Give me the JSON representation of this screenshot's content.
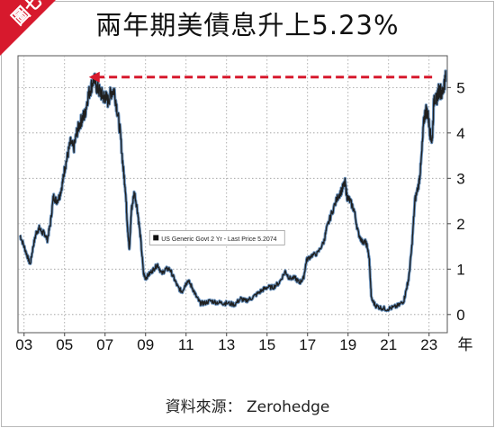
{
  "badge": {
    "label": "圖七",
    "color": "#d7192d"
  },
  "title": "兩年期美債息升上5.23%",
  "source": "資料來源：  Zerohedge",
  "chart_data": {
    "type": "line",
    "title": "兩年期美債息升上5.23%",
    "xlabel": "年",
    "ylabel": "",
    "x_tick_labels": [
      "03",
      "05",
      "07",
      "09",
      "11",
      "13",
      "15",
      "17",
      "19",
      "21",
      "23"
    ],
    "y_tick_labels": [
      "0",
      "1",
      "2",
      "3",
      "4",
      "5"
    ],
    "xlim": [
      2002.7,
      2023.9
    ],
    "ylim": [
      -0.4,
      5.7
    ],
    "grid": true,
    "grid_style": "dotted",
    "legend_text": "US Generic Govt 2 Yr - Last Price 5.2074",
    "legend_position": "center",
    "line_color": "#1f1f1f",
    "line_highlight_color": "#4f7fb3",
    "annotation": {
      "type": "dashed-arrow",
      "from_x": 2023.15,
      "to_x": 2006.2,
      "y": 5.23,
      "color": "#d7192d"
    },
    "series": [
      {
        "values": [
          [
            2002.8,
            1.75
          ],
          [
            2003.0,
            1.5
          ],
          [
            2003.15,
            1.3
          ],
          [
            2003.3,
            1.1
          ],
          [
            2003.45,
            1.5
          ],
          [
            2003.6,
            1.8
          ],
          [
            2003.75,
            1.9
          ],
          [
            2003.9,
            1.8
          ],
          [
            2004.0,
            1.8
          ],
          [
            2004.15,
            1.65
          ],
          [
            2004.3,
            2.0
          ],
          [
            2004.45,
            2.6
          ],
          [
            2004.6,
            2.5
          ],
          [
            2004.75,
            2.6
          ],
          [
            2004.9,
            2.9
          ],
          [
            2005.0,
            3.2
          ],
          [
            2005.15,
            3.5
          ],
          [
            2005.3,
            3.8
          ],
          [
            2005.45,
            3.65
          ],
          [
            2005.6,
            4.0
          ],
          [
            2005.75,
            4.2
          ],
          [
            2005.9,
            4.35
          ],
          [
            2006.0,
            4.4
          ],
          [
            2006.15,
            4.8
          ],
          [
            2006.3,
            5.0
          ],
          [
            2006.45,
            5.2
          ],
          [
            2006.6,
            5.0
          ],
          [
            2006.75,
            4.9
          ],
          [
            2006.9,
            4.8
          ],
          [
            2007.0,
            4.8
          ],
          [
            2007.15,
            4.7
          ],
          [
            2007.3,
            4.9
          ],
          [
            2007.45,
            4.95
          ],
          [
            2007.6,
            4.5
          ],
          [
            2007.75,
            4.0
          ],
          [
            2007.9,
            3.2
          ],
          [
            2008.0,
            2.8
          ],
          [
            2008.1,
            2.0
          ],
          [
            2008.2,
            1.4
          ],
          [
            2008.3,
            2.3
          ],
          [
            2008.45,
            2.7
          ],
          [
            2008.6,
            2.3
          ],
          [
            2008.75,
            1.7
          ],
          [
            2008.9,
            0.9
          ],
          [
            2009.0,
            0.8
          ],
          [
            2009.2,
            0.9
          ],
          [
            2009.4,
            1.0
          ],
          [
            2009.6,
            1.1
          ],
          [
            2009.8,
            0.9
          ],
          [
            2010.0,
            1.0
          ],
          [
            2010.2,
            1.0
          ],
          [
            2010.4,
            0.8
          ],
          [
            2010.6,
            0.6
          ],
          [
            2010.8,
            0.5
          ],
          [
            2010.95,
            0.65
          ],
          [
            2011.1,
            0.75
          ],
          [
            2011.3,
            0.6
          ],
          [
            2011.5,
            0.4
          ],
          [
            2011.7,
            0.25
          ],
          [
            2011.9,
            0.25
          ],
          [
            2012.2,
            0.3
          ],
          [
            2012.5,
            0.27
          ],
          [
            2012.8,
            0.25
          ],
          [
            2013.0,
            0.25
          ],
          [
            2013.4,
            0.22
          ],
          [
            2013.7,
            0.35
          ],
          [
            2013.9,
            0.3
          ],
          [
            2014.2,
            0.35
          ],
          [
            2014.5,
            0.45
          ],
          [
            2014.8,
            0.55
          ],
          [
            2015.0,
            0.6
          ],
          [
            2015.3,
            0.6
          ],
          [
            2015.6,
            0.7
          ],
          [
            2015.9,
            0.95
          ],
          [
            2016.1,
            0.8
          ],
          [
            2016.4,
            0.8
          ],
          [
            2016.6,
            0.7
          ],
          [
            2016.8,
            0.8
          ],
          [
            2016.95,
            1.2
          ],
          [
            2017.2,
            1.3
          ],
          [
            2017.5,
            1.35
          ],
          [
            2017.8,
            1.6
          ],
          [
            2017.95,
            1.9
          ],
          [
            2018.2,
            2.25
          ],
          [
            2018.5,
            2.6
          ],
          [
            2018.7,
            2.75
          ],
          [
            2018.85,
            2.9
          ],
          [
            2018.95,
            2.6
          ],
          [
            2019.1,
            2.5
          ],
          [
            2019.3,
            2.3
          ],
          [
            2019.5,
            1.8
          ],
          [
            2019.7,
            1.6
          ],
          [
            2019.85,
            1.6
          ],
          [
            2019.95,
            1.5
          ],
          [
            2020.05,
            1.2
          ],
          [
            2020.15,
            0.35
          ],
          [
            2020.35,
            0.2
          ],
          [
            2020.6,
            0.15
          ],
          [
            2020.9,
            0.12
          ],
          [
            2021.2,
            0.15
          ],
          [
            2021.5,
            0.2
          ],
          [
            2021.75,
            0.3
          ],
          [
            2021.9,
            0.6
          ],
          [
            2022.0,
            0.8
          ],
          [
            2022.15,
            1.5
          ],
          [
            2022.3,
            2.5
          ],
          [
            2022.5,
            2.9
          ],
          [
            2022.6,
            3.3
          ],
          [
            2022.75,
            4.3
          ],
          [
            2022.85,
            4.5
          ],
          [
            2022.95,
            4.4
          ],
          [
            2023.05,
            4.0
          ],
          [
            2023.15,
            3.8
          ],
          [
            2023.25,
            4.8
          ],
          [
            2023.35,
            4.7
          ],
          [
            2023.45,
            4.9
          ],
          [
            2023.55,
            4.95
          ],
          [
            2023.65,
            4.85
          ],
          [
            2023.75,
            5.1
          ],
          [
            2023.82,
            5.21
          ]
        ]
      }
    ]
  }
}
